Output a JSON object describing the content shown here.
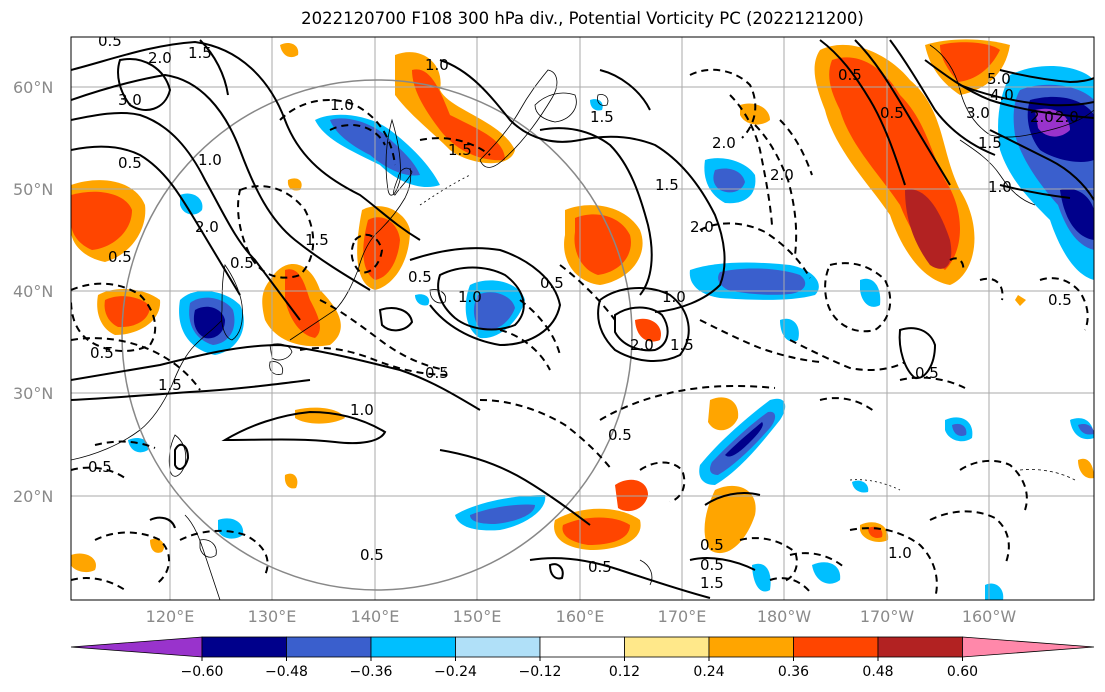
{
  "title": "2022120700 F108 300 hPa div., Potential Vorticity PC (2022121200)",
  "axes": {
    "lat_labels": [
      "60°N",
      "50°N",
      "40°N",
      "30°N",
      "20°N"
    ],
    "lon_labels": [
      "120°E",
      "130°E",
      "140°E",
      "150°E",
      "160°E",
      "170°E",
      "180°W",
      "170°W",
      "160°W"
    ]
  },
  "colorbar": {
    "tick_labels": [
      "−0.60",
      "−0.48",
      "−0.36",
      "−0.24",
      "−0.12",
      "0.12",
      "0.24",
      "0.36",
      "0.48",
      "0.60"
    ],
    "colors": [
      "#9933cc",
      "#00008b",
      "#3a5fcd",
      "#00bfff",
      "#b0e0f8",
      "#ffffff",
      "#ffe88a",
      "#ffa500",
      "#ff4500",
      "#b22222",
      "#ff88aa"
    ]
  },
  "contour_labels": [
    "0.5",
    "2.0",
    "1.5",
    "3.0",
    "1.0",
    "1.0",
    "1.5",
    "0.5",
    "1.0",
    "1.5",
    "2.0",
    "0.5",
    "2.0",
    "1.5",
    "0.5",
    "0.5",
    "0.5",
    "1.0",
    "1.5",
    "2.0",
    "0.5",
    "1.0",
    "2.0",
    "1.5",
    "0.5",
    "2.0",
    "2.0",
    "5.0",
    "4.0",
    "3.0",
    "2.0",
    "1.5",
    "1.0",
    "0.5",
    "0.5",
    "1.0",
    "0.5",
    "0.5",
    "1.5",
    "0.5",
    "0.5",
    "0.5",
    "0.5",
    "1.0",
    "0.5",
    "0.5",
    "1.5"
  ],
  "map_colors": {
    "land": "#000000",
    "grid": "#aaaaaa",
    "circle": "#888888"
  }
}
